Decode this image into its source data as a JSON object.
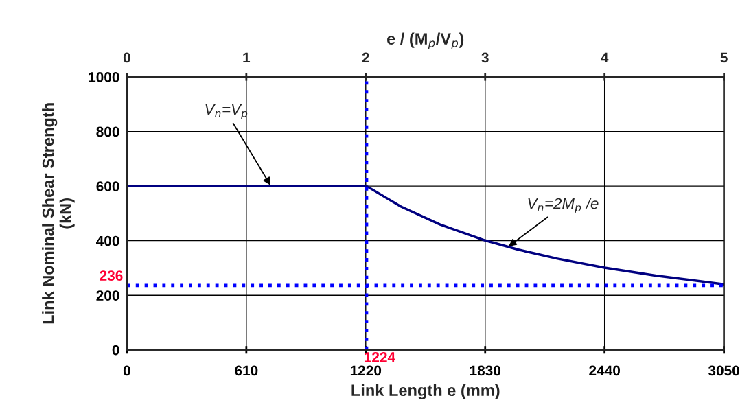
{
  "chart_data": {
    "type": "line",
    "xlabel": "Link Length e (mm)",
    "ylabel": "Link Nominal Shear Strength\n(kN)",
    "x2label": "e / (M$_{p}$/V$_{p}$)",
    "x": [
      0,
      610,
      1224,
      1400,
      1600,
      1830,
      2000,
      2200,
      2440,
      2700,
      3050
    ],
    "series": [
      {
        "color": "#000080",
        "values": [
          600,
          600,
          600,
          525,
          459,
          401,
          367,
          334,
          301,
          272,
          240
        ]
      }
    ],
    "xlim": [
      0,
      3050
    ],
    "xticks": [
      0,
      610,
      1220,
      1830,
      2440,
      3050
    ],
    "x2lim": [
      0,
      5
    ],
    "x2ticks": [
      0,
      1,
      2,
      3,
      4,
      5
    ],
    "ylim": [
      0,
      1000
    ],
    "yticks": [
      0,
      200,
      400,
      600,
      800,
      1000
    ],
    "grid": true,
    "marker": "none",
    "line_style": "solid",
    "ref_lines": [
      {
        "axis": "y",
        "value": 236,
        "label": "236",
        "color": "#0000ff",
        "line_style": "dotted"
      },
      {
        "axis": "x",
        "value": 1224,
        "label": "1224",
        "color": "#0000ff",
        "line_style": "dotted"
      }
    ],
    "annotations": [
      {
        "text": "V$_{n}$=V$_{p}$",
        "x": 736,
        "y": 600
      },
      {
        "text": "V$_{n}$=2M$_{p}$ /e",
        "x": 1946,
        "y": 377
      }
    ]
  }
}
